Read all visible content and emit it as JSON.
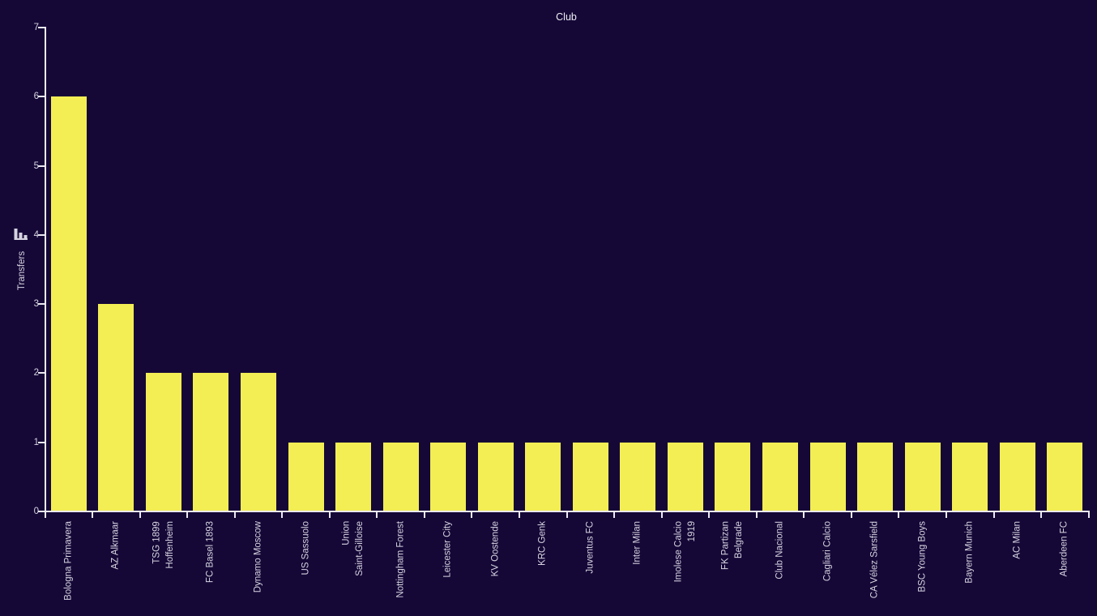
{
  "page": {
    "background_color": "#150837"
  },
  "chart": {
    "title": "Club",
    "ylabel": "Transfers",
    "ylabel_icon": "bar-chart-icon",
    "colors": {
      "background": "#150837",
      "bar": "#f3ee54",
      "axis": "#ece9f1",
      "tick_label": "#d6d3e0",
      "title_text": "#f0eef5"
    }
  },
  "chart_data": {
    "type": "bar",
    "title": "Club",
    "xlabel": "",
    "ylabel": "Transfers",
    "categories": [
      "Bologna Primavera",
      "AZ Alkmaar",
      "TSG 1899\nHoffenheim",
      "FC Basel 1893",
      "Dynamo Moscow",
      "US Sassuolo",
      "Union\nSaint-Gilloise",
      "Nottingham Forest",
      "Leicester City",
      "KV Oostende",
      "KRC Genk",
      "Juventus FC",
      "Inter Milan",
      "Imolese Calcio\n1919",
      "FK Partizan\nBelgrade",
      "Club Nacional",
      "Cagliari Calcio",
      "CA Vélez Sarsfield",
      "BSC Young Boys",
      "Bayern Munich",
      "AC Milan",
      "Aberdeen FC"
    ],
    "values": [
      6,
      3,
      2,
      2,
      2,
      1,
      1,
      1,
      1,
      1,
      1,
      1,
      1,
      1,
      1,
      1,
      1,
      1,
      1,
      1,
      1,
      1
    ],
    "ylim": [
      0,
      7
    ],
    "yticks": [
      0,
      1,
      2,
      3,
      4,
      5,
      6,
      7
    ],
    "grid": false,
    "legend": null,
    "bar_color": "#f3ee54",
    "category_label_rotation_degrees": 90,
    "x_ticks_at_category_boundaries": true
  }
}
